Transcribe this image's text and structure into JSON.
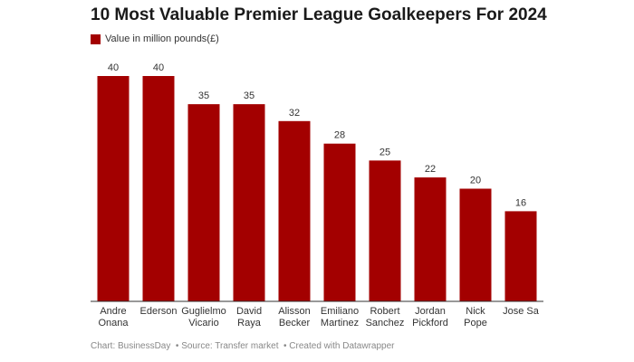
{
  "chart_data": {
    "type": "bar",
    "title": "10 Most Valuable Premier League Goalkeepers For 2024",
    "legend": "Value in million pounds(£)",
    "categories": [
      "Andre\nOnana",
      "Ederson",
      "Guglielmo\nVicario",
      "David\nRaya",
      "Alisson\nBecker",
      "Emiliano\nMartinez",
      "Robert\nSanchez",
      "Jordan\nPickford",
      "Nick\nPope",
      "Jose Sa"
    ],
    "values": [
      40,
      40,
      35,
      35,
      32,
      28,
      25,
      22,
      20,
      16
    ],
    "color": "#a30000",
    "footer": "Chart: BusinessDay  • Source: Transfer market  • Created with Datawrapper"
  }
}
